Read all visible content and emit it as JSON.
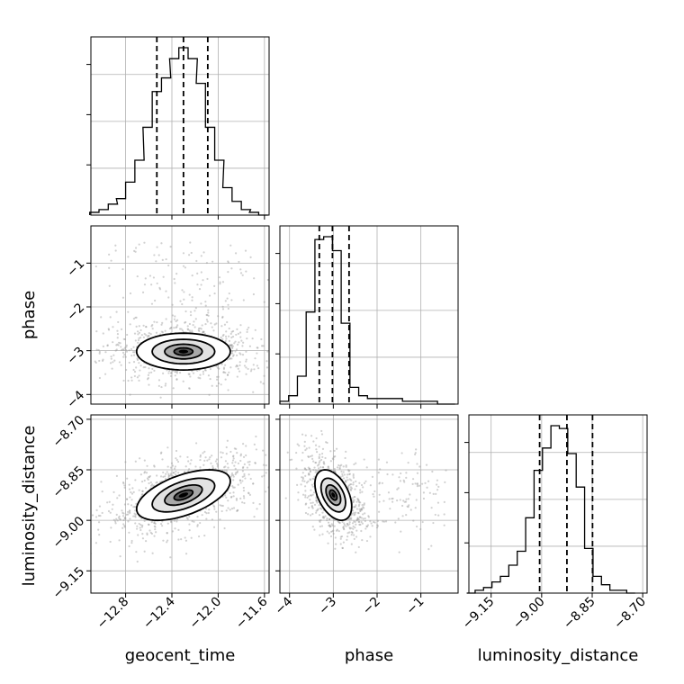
{
  "chart_data": {
    "type": "corner",
    "parameters": [
      {
        "name": "geocent_time",
        "label": "geocent_time",
        "range": [
          -13.1,
          -11.56
        ],
        "ticks": [
          -12.8,
          -12.4,
          -12.0,
          -11.6
        ],
        "tick_labels": [
          "−12.8",
          "−12.4",
          "−12.0",
          "−11.6"
        ]
      },
      {
        "name": "phase",
        "label": "phase",
        "range": [
          -4.22,
          -0.15
        ],
        "ticks": [
          -4,
          -3,
          -2,
          -1
        ],
        "tick_labels": [
          "−4",
          "−3",
          "−2",
          "−1"
        ]
      },
      {
        "name": "luminosity_distance",
        "label": "luminosity_distance",
        "range": [
          -9.216,
          -8.687
        ],
        "ticks": [
          -9.15,
          -9.0,
          -8.85,
          -8.7
        ],
        "tick_labels": [
          "−9.15",
          "−9.00",
          "−8.85",
          "−8.70"
        ]
      }
    ],
    "histograms": [
      {
        "parameter": "geocent_time",
        "bins": [
          -13.07,
          -12.99,
          -12.91,
          -12.84,
          -12.76,
          -12.68,
          -12.61,
          -12.53,
          -12.45,
          -12.38,
          -12.3,
          -12.22,
          -12.15,
          -12.07,
          -11.99,
          -11.92,
          -11.84,
          -11.76,
          -11.69,
          -11.61
        ],
        "counts": [
          1,
          2,
          4,
          6,
          12,
          20,
          32,
          45,
          50,
          57,
          61,
          57,
          48,
          32,
          20,
          10,
          5,
          2,
          1,
          0
        ],
        "quantiles": [
          -12.53,
          -12.3,
          -12.09
        ]
      },
      {
        "parameter": "phase",
        "bins": [
          -4.12,
          -3.92,
          -3.72,
          -3.52,
          -3.32,
          -3.12,
          -2.92,
          -2.72,
          -2.52,
          -2.32,
          -2.12,
          -1.92,
          -1.72,
          -1.52,
          -1.32,
          -1.12,
          -0.92,
          -0.72,
          -0.52,
          -0.32
        ],
        "counts": [
          1,
          3,
          10,
          33,
          59,
          60,
          55,
          29,
          6,
          3,
          2,
          2,
          2,
          2,
          1,
          1,
          1,
          1,
          0,
          0
        ],
        "quantiles": [
          -3.32,
          -3.02,
          -2.64
        ]
      },
      {
        "parameter": "luminosity_distance",
        "bins": [
          -9.21,
          -9.185,
          -9.16,
          -9.135,
          -9.11,
          -9.085,
          -9.06,
          -9.035,
          -9.01,
          -8.985,
          -8.96,
          -8.935,
          -8.91,
          -8.885,
          -8.86,
          -8.835,
          -8.81,
          -8.785,
          -8.76,
          -8.735
        ],
        "counts": [
          0,
          1,
          2,
          4,
          6,
          10,
          15,
          27,
          44,
          52,
          60,
          59,
          50,
          38,
          16,
          6,
          3,
          1,
          1,
          0
        ],
        "quantiles": [
          -9.006,
          -8.925,
          -8.849
        ]
      }
    ],
    "joint": [
      {
        "x": "geocent_time",
        "y": "phase",
        "center": [
          -12.3,
          -3.02
        ],
        "sd": [
          0.27,
          0.28
        ],
        "rho": 0.0,
        "contours": [
          0.3,
          0.6,
          1.0,
          1.5
        ]
      },
      {
        "x": "geocent_time",
        "y": "luminosity_distance",
        "center": [
          -12.3,
          -8.925
        ],
        "sd": [
          0.27,
          0.05
        ],
        "rho": 0.55,
        "contours": [
          0.3,
          0.6,
          1.0,
          1.5
        ]
      },
      {
        "x": "phase",
        "y": "luminosity_distance",
        "center": [
          -3.0,
          -8.925
        ],
        "sd": [
          0.28,
          0.05
        ],
        "rho": -0.45,
        "contours": [
          0.3,
          0.6,
          1.0,
          1.5
        ]
      }
    ],
    "quantile_levels": [
      0.16,
      0.5,
      0.84
    ],
    "grid": true
  }
}
